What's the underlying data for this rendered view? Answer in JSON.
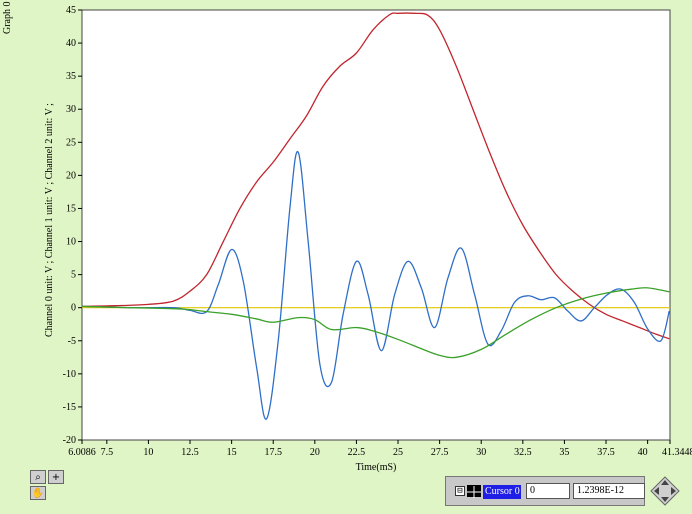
{
  "graph_name": "Graph 0",
  "colors": {
    "background": "#dff5c6",
    "plot_area": "#ffffff",
    "channel_red": "#c0262e",
    "channel_blue": "#2f6fc8",
    "channel_green": "#3aa12a",
    "zero_line": "#e0c800"
  },
  "chart_data": {
    "type": "line",
    "xlabel": "Time(mS)",
    "ylabel": "Channel 0  unit: V ; Channel 1  unit: V ; Channel 2  unit: V ;",
    "xlim": [
      6.0086,
      41.3448
    ],
    "ylim": [
      -20,
      45
    ],
    "x_ticks": [
      "6.0086",
      "7.5",
      "10",
      "12.5",
      "15",
      "17.5",
      "20",
      "22.5",
      "25",
      "27.5",
      "30",
      "32.5",
      "35",
      "37.5",
      "40",
      "41.3448"
    ],
    "x_tick_values": [
      6.0086,
      7.5,
      10,
      12.5,
      15,
      17.5,
      20,
      22.5,
      25,
      27.5,
      30,
      32.5,
      35,
      37.5,
      40,
      41.3448
    ],
    "y_ticks": [
      -20,
      -15,
      -10,
      -5,
      0,
      5,
      10,
      15,
      20,
      25,
      30,
      35,
      40,
      45
    ],
    "series": [
      {
        "color": "#c0262e",
        "x": [
          6.0,
          8.0,
          10.0,
          11.5,
          12.5,
          13.5,
          14.5,
          15.5,
          16.5,
          17.5,
          18.5,
          19.5,
          20.5,
          21.5,
          22.5,
          23.5,
          24.5,
          25.0,
          26.0,
          26.8,
          27.5,
          28.5,
          29.5,
          30.5,
          31.5,
          32.5,
          33.5,
          34.5,
          35.5,
          36.5,
          37.5,
          38.5,
          39.5,
          40.5,
          41.3
        ],
        "y": [
          0.2,
          0.3,
          0.5,
          1.0,
          2.5,
          5.0,
          10.0,
          15.0,
          19.0,
          22.0,
          25.5,
          29.0,
          33.5,
          36.5,
          38.5,
          42.0,
          44.3,
          44.5,
          44.5,
          44.2,
          42.0,
          36.5,
          30.0,
          23.5,
          17.5,
          12.5,
          8.5,
          5.0,
          2.5,
          0.5,
          -1.0,
          -2.0,
          -3.0,
          -4.0,
          -4.7
        ]
      },
      {
        "color": "#2f6fc8",
        "x": [
          6.0,
          9.0,
          11.5,
          12.5,
          13.5,
          14.2,
          15.0,
          15.7,
          16.5,
          17.1,
          17.8,
          18.5,
          19.0,
          19.6,
          20.3,
          21.0,
          21.7,
          22.5,
          23.2,
          24.0,
          24.8,
          25.6,
          26.4,
          27.2,
          28.0,
          28.8,
          29.6,
          30.4,
          31.2,
          32.0,
          32.8,
          33.6,
          34.4,
          35.2,
          36.0,
          36.8,
          37.6,
          38.4,
          39.2,
          40.0,
          40.8,
          41.3
        ],
        "y": [
          0.2,
          0.0,
          0.0,
          -0.4,
          -0.6,
          3.5,
          8.8,
          4.0,
          -9.0,
          -16.8,
          -5.0,
          15.0,
          23.5,
          10.0,
          -8.5,
          -11.3,
          -1.0,
          7.0,
          2.0,
          -6.5,
          2.0,
          7.0,
          3.0,
          -3.0,
          4.5,
          9.0,
          2.0,
          -5.5,
          -3.5,
          0.8,
          1.8,
          1.2,
          1.5,
          -0.5,
          -2.0,
          0.0,
          2.0,
          2.8,
          0.8,
          -3.2,
          -5.0,
          -0.5
        ]
      },
      {
        "color": "#3aa12a",
        "x": [
          6.0,
          9.0,
          12.0,
          13.5,
          15.0,
          16.5,
          17.5,
          19.0,
          20.0,
          21.0,
          22.5,
          23.5,
          25.0,
          26.5,
          27.5,
          28.5,
          30.0,
          31.5,
          33.0,
          34.5,
          36.0,
          37.5,
          39.0,
          40.0,
          41.3
        ],
        "y": [
          0.2,
          0.0,
          -0.2,
          -0.6,
          -1.0,
          -1.7,
          -2.2,
          -1.5,
          -1.8,
          -3.3,
          -3.0,
          -3.5,
          -4.8,
          -6.3,
          -7.2,
          -7.5,
          -6.3,
          -4.0,
          -1.8,
          0.0,
          1.3,
          2.2,
          2.8,
          3.0,
          2.4
        ]
      }
    ],
    "zero_line": {
      "y": 0,
      "color": "#e0c800"
    }
  },
  "tools": {
    "zoom": "zoom-icon",
    "cursor_move": "crosshair-icon",
    "pan": "hand-icon"
  },
  "cursor": {
    "name": "Cursor 0",
    "x_value": "0",
    "y_value": "1.2398E-12",
    "expand": "⊟"
  }
}
